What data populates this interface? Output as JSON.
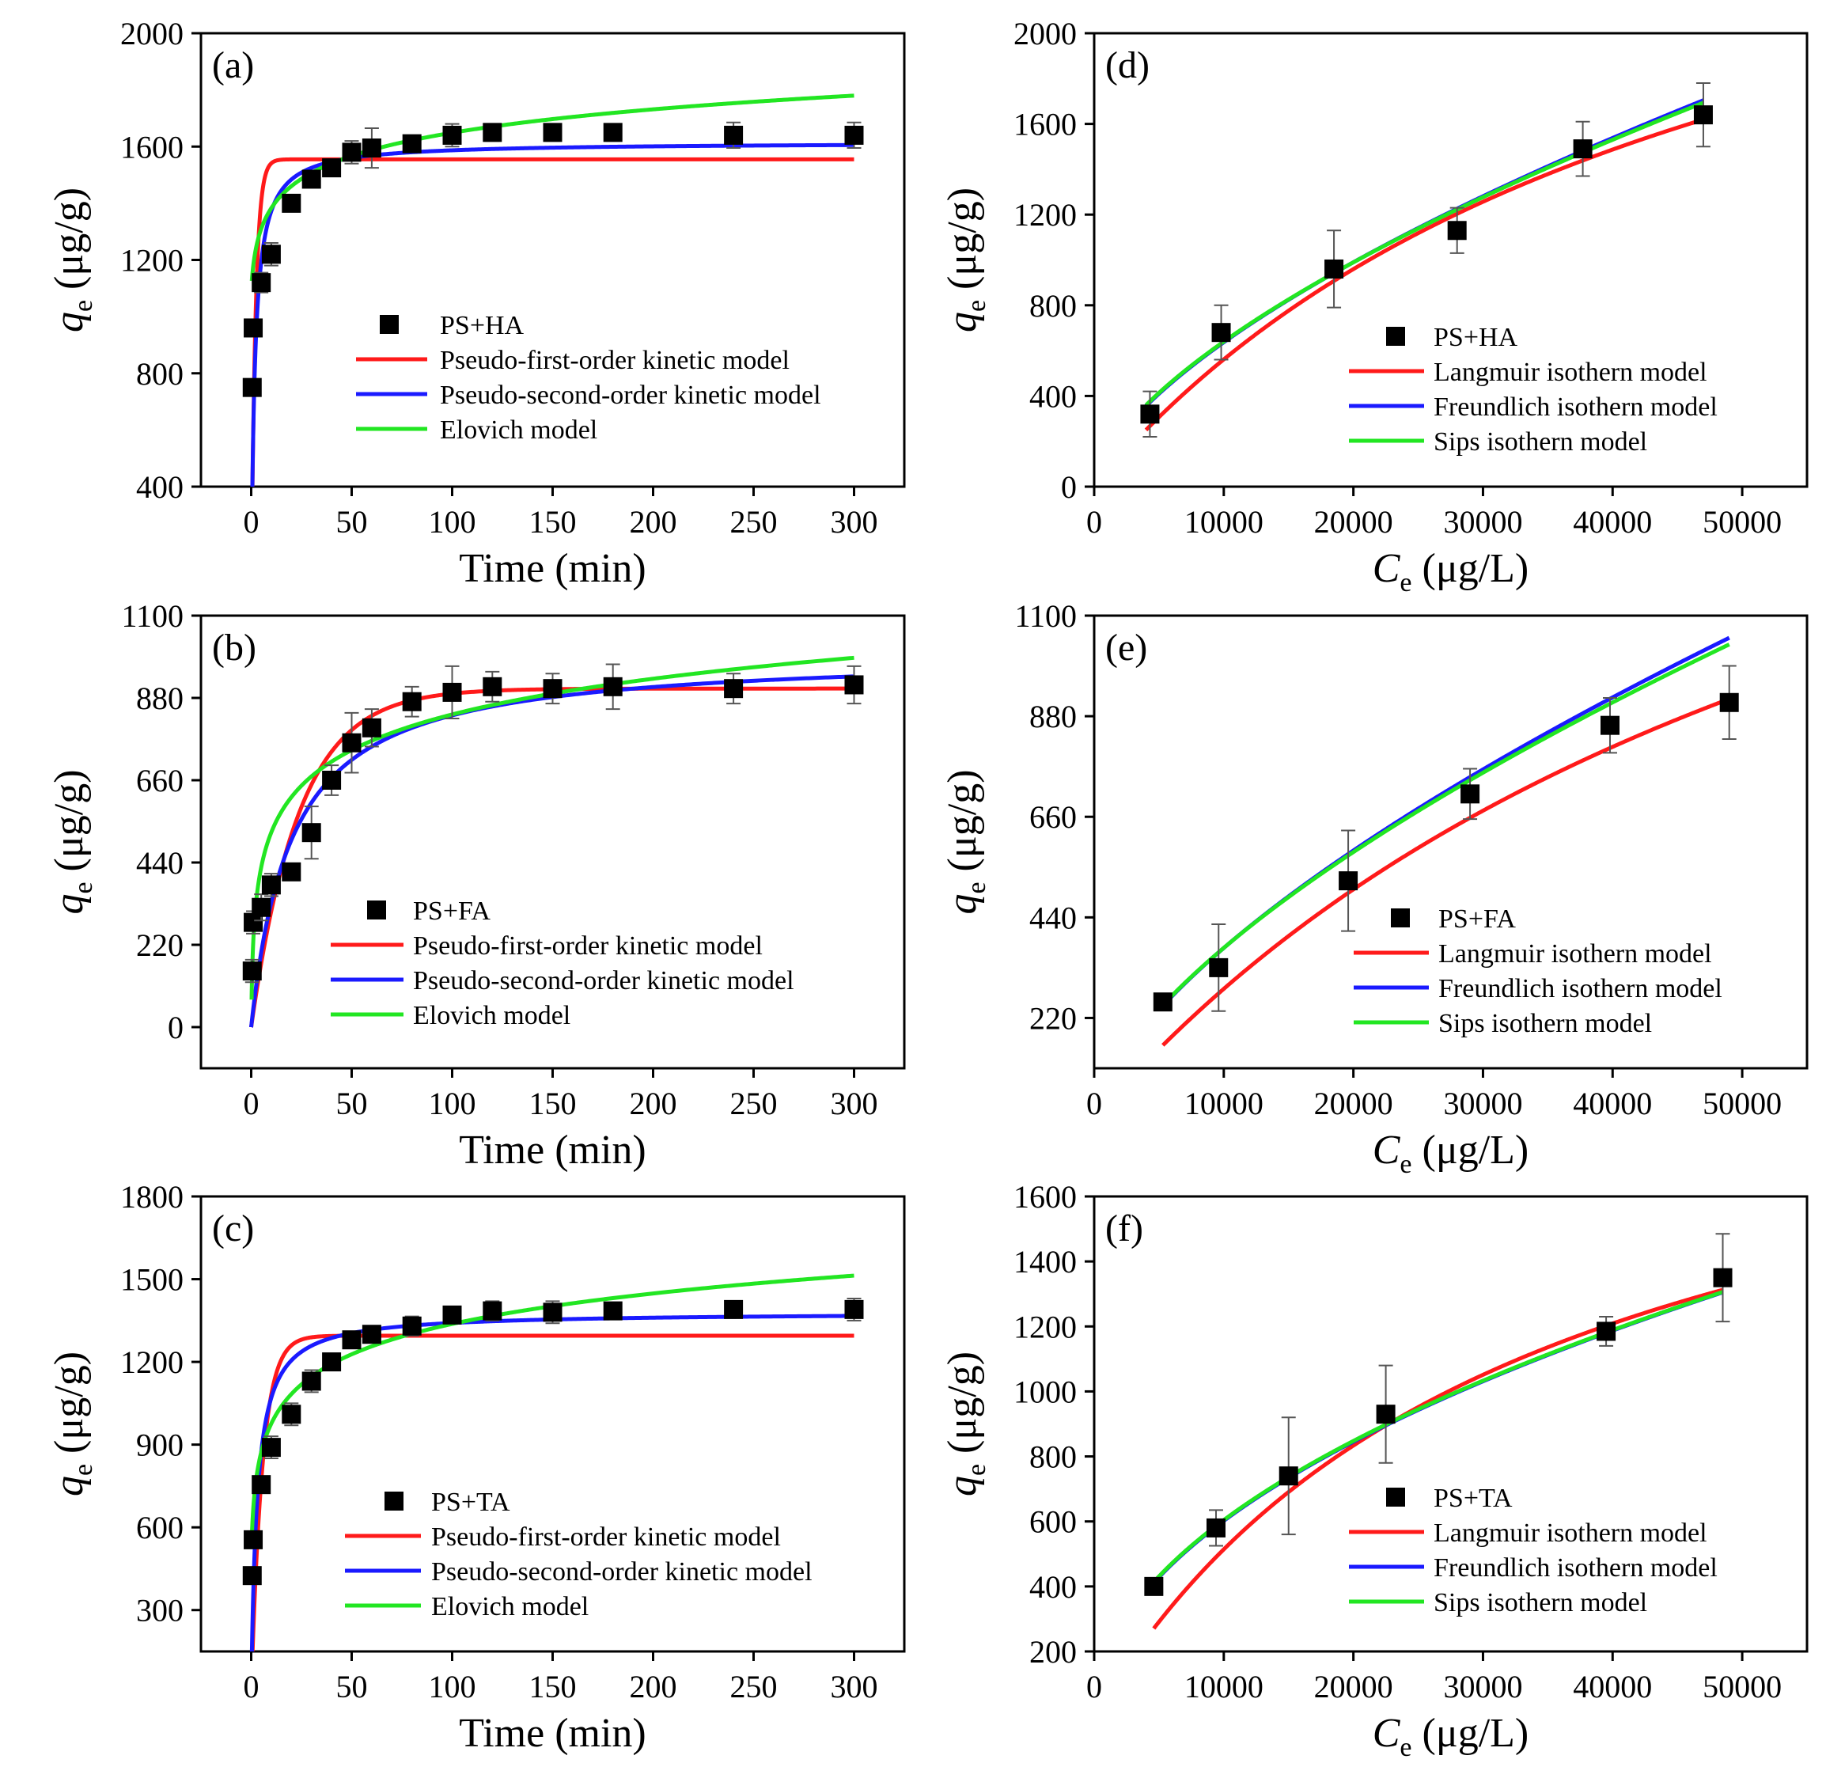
{
  "figure": {
    "colors": {
      "data": "#000000",
      "pfo": "#ff1a1a",
      "pso": "#1a1aff",
      "elovich": "#22e622",
      "langmuir": "#ff1a1a",
      "freundlich": "#1a1aff",
      "sips": "#22e622"
    }
  },
  "chart_data": [
    {
      "type": "scatter",
      "panel": "(a)",
      "xlabel_main": "Time (min)",
      "ylabel_main": "q",
      "ylabel_sub": "e",
      "ylabel_unit": " (μg/g)",
      "xlim": [
        -25,
        325
      ],
      "ylim": [
        400,
        2000
      ],
      "xticks": [
        0,
        50,
        100,
        150,
        200,
        250,
        300
      ],
      "xtick_labels": [
        "0",
        "50",
        "100",
        "150",
        "200",
        "250",
        "300"
      ],
      "yticks": [
        400,
        800,
        1200,
        1600,
        2000
      ],
      "ytick_labels": [
        "400",
        "800",
        "1200",
        "1600",
        "2000"
      ],
      "legend": [
        "PS+HA",
        "Pseudo-first-order kinetic model",
        "Pseudo-second-order kinetic model",
        "Elovich model"
      ],
      "points": [
        {
          "x": 0.5,
          "y": 750,
          "err": 25
        },
        {
          "x": 1,
          "y": 960,
          "err": 30
        },
        {
          "x": 5,
          "y": 1120,
          "err": 35
        },
        {
          "x": 10,
          "y": 1220,
          "err": 40
        },
        {
          "x": 20,
          "y": 1400,
          "err": 25
        },
        {
          "x": 30,
          "y": 1485,
          "err": 30
        },
        {
          "x": 40,
          "y": 1525,
          "err": 30
        },
        {
          "x": 50,
          "y": 1580,
          "err": 40
        },
        {
          "x": 60,
          "y": 1595,
          "err": 70
        },
        {
          "x": 80,
          "y": 1610,
          "err": 20
        },
        {
          "x": 100,
          "y": 1640,
          "err": 40
        },
        {
          "x": 120,
          "y": 1650,
          "err": 30
        },
        {
          "x": 150,
          "y": 1650,
          "err": 30
        },
        {
          "x": 180,
          "y": 1650,
          "err": 30
        },
        {
          "x": 240,
          "y": 1640,
          "err": 45
        },
        {
          "x": 300,
          "y": 1640,
          "err": 45
        }
      ],
      "series": [
        {
          "name": "Pseudo-first-order kinetic model",
          "model": "pfo",
          "color": "pfo",
          "params": {
            "qe": 1555,
            "k": 0.47
          },
          "x0": 0,
          "x1": 300
        },
        {
          "name": "Pseudo-second-order kinetic model",
          "model": "pso",
          "color": "pso",
          "params": {
            "qe": 1615,
            "k": 0.00035
          },
          "x0": 0,
          "x1": 300
        },
        {
          "name": "Elovich model",
          "model": "elovich",
          "color": "elovich",
          "params": {
            "a": 1095,
            "b": 120,
            "c": 1
          },
          "x0": 0.3,
          "x1": 300
        }
      ]
    },
    {
      "type": "scatter",
      "panel": "(b)",
      "xlabel_main": "Time (min)",
      "ylabel_main": "q",
      "ylabel_sub": "e",
      "ylabel_unit": " (μg/g)",
      "xlim": [
        -25,
        325
      ],
      "ylim": [
        -110,
        1100
      ],
      "xticks": [
        0,
        50,
        100,
        150,
        200,
        250,
        300
      ],
      "xtick_labels": [
        "0",
        "50",
        "100",
        "150",
        "200",
        "250",
        "300"
      ],
      "yticks": [
        0,
        220,
        440,
        660,
        880,
        1100
      ],
      "ytick_labels": [
        "0",
        "220",
        "440",
        "660",
        "880",
        "1100"
      ],
      "legend": [
        "PS+FA",
        "Pseudo-first-order kinetic model",
        "Pseudo-second-order kinetic model",
        "Elovich model"
      ],
      "points": [
        {
          "x": 0.5,
          "y": 150,
          "err": 30
        },
        {
          "x": 1,
          "y": 280,
          "err": 30
        },
        {
          "x": 5,
          "y": 320,
          "err": 35
        },
        {
          "x": 10,
          "y": 380,
          "err": 30
        },
        {
          "x": 20,
          "y": 415,
          "err": 20
        },
        {
          "x": 30,
          "y": 520,
          "err": 70
        },
        {
          "x": 40,
          "y": 660,
          "err": 40
        },
        {
          "x": 50,
          "y": 760,
          "err": 80
        },
        {
          "x": 60,
          "y": 800,
          "err": 50
        },
        {
          "x": 80,
          "y": 870,
          "err": 40
        },
        {
          "x": 100,
          "y": 895,
          "err": 70
        },
        {
          "x": 120,
          "y": 910,
          "err": 40
        },
        {
          "x": 150,
          "y": 905,
          "err": 40
        },
        {
          "x": 180,
          "y": 910,
          "err": 60
        },
        {
          "x": 240,
          "y": 905,
          "err": 40
        },
        {
          "x": 300,
          "y": 915,
          "err": 50
        }
      ],
      "series": [
        {
          "name": "Pseudo-first-order kinetic model",
          "model": "pfo",
          "color": "pfo",
          "params": {
            "qe": 905,
            "k": 0.042
          },
          "x0": 0,
          "x1": 300
        },
        {
          "name": "Pseudo-second-order kinetic model",
          "model": "pso",
          "color": "pso",
          "params": {
            "qe": 1000,
            "k": 5e-05
          },
          "x0": 0,
          "x1": 300
        },
        {
          "name": "Elovich model",
          "model": "elovich",
          "color": "elovich",
          "params": {
            "a": 200,
            "b": 138,
            "c": 0.2
          },
          "x0": 0.2,
          "x1": 300
        }
      ]
    },
    {
      "type": "scatter",
      "panel": "(c)",
      "xlabel_main": "Time (min)",
      "ylabel_main": "q",
      "ylabel_sub": "e",
      "ylabel_unit": " (μg/g)",
      "xlim": [
        -25,
        325
      ],
      "ylim": [
        150,
        1800
      ],
      "xticks": [
        0,
        50,
        100,
        150,
        200,
        250,
        300
      ],
      "xtick_labels": [
        "0",
        "50",
        "100",
        "150",
        "200",
        "250",
        "300"
      ],
      "yticks": [
        300,
        600,
        900,
        1200,
        1500,
        1800
      ],
      "ytick_labels": [
        "300",
        "600",
        "900",
        "1200",
        "1500",
        "1800"
      ],
      "legend": [
        "PS+TA",
        "Pseudo-first-order kinetic model",
        "Pseudo-second-order kinetic model",
        "Elovich model"
      ],
      "points": [
        {
          "x": 0.5,
          "y": 425,
          "err": 30
        },
        {
          "x": 1,
          "y": 555,
          "err": 30
        },
        {
          "x": 5,
          "y": 755,
          "err": 30
        },
        {
          "x": 10,
          "y": 890,
          "err": 40
        },
        {
          "x": 20,
          "y": 1010,
          "err": 40
        },
        {
          "x": 30,
          "y": 1130,
          "err": 40
        },
        {
          "x": 40,
          "y": 1200,
          "err": 30
        },
        {
          "x": 50,
          "y": 1280,
          "err": 30
        },
        {
          "x": 60,
          "y": 1300,
          "err": 25
        },
        {
          "x": 80,
          "y": 1330,
          "err": 35
        },
        {
          "x": 100,
          "y": 1370,
          "err": 30
        },
        {
          "x": 120,
          "y": 1385,
          "err": 35
        },
        {
          "x": 150,
          "y": 1380,
          "err": 40
        },
        {
          "x": 180,
          "y": 1385,
          "err": 30
        },
        {
          "x": 240,
          "y": 1390,
          "err": 30
        },
        {
          "x": 300,
          "y": 1390,
          "err": 40
        }
      ],
      "series": [
        {
          "name": "Pseudo-first-order kinetic model",
          "model": "pfo",
          "color": "pfo",
          "params": {
            "qe": 1295,
            "k": 0.18
          },
          "x0": 0,
          "x1": 300
        },
        {
          "name": "Pseudo-second-order kinetic model",
          "model": "pso",
          "color": "pso",
          "params": {
            "qe": 1380,
            "k": 0.00025
          },
          "x0": 0,
          "x1": 300
        },
        {
          "name": "Elovich model",
          "model": "elovich",
          "color": "elovich",
          "params": {
            "a": 600,
            "b": 160,
            "c": 0.5
          },
          "x0": 0.2,
          "x1": 300
        }
      ]
    },
    {
      "type": "scatter",
      "panel": "(d)",
      "xlabel_main": "C",
      "xlabel_sub": "e",
      "xlabel_unit": " (μg/L)",
      "ylabel_main": "q",
      "ylabel_sub": "e",
      "ylabel_unit": " (μg/g)",
      "xlim": [
        0,
        55000
      ],
      "ylim": [
        0,
        2000
      ],
      "xticks": [
        0,
        10000,
        20000,
        30000,
        40000,
        50000
      ],
      "xtick_labels": [
        "0",
        "10000",
        "20000",
        "30000",
        "40000",
        "50000"
      ],
      "yticks": [
        0,
        400,
        800,
        1200,
        1600,
        2000
      ],
      "ytick_labels": [
        "0",
        "400",
        "800",
        "1200",
        "1600",
        "2000"
      ],
      "legend": [
        "PS+HA",
        "Langmuir isothern model",
        "Freundlich isothern model",
        "Sips isothern model"
      ],
      "points": [
        {
          "x": 4300,
          "y": 320,
          "err": 100
        },
        {
          "x": 9800,
          "y": 680,
          "err": 120
        },
        {
          "x": 18500,
          "y": 960,
          "err": 170
        },
        {
          "x": 28000,
          "y": 1130,
          "err": 100
        },
        {
          "x": 37700,
          "y": 1490,
          "err": 120
        },
        {
          "x": 47000,
          "y": 1640,
          "err": 140
        }
      ],
      "series": [
        {
          "name": "Langmuir isothern model",
          "model": "langmuir",
          "color": "langmuir",
          "params": {
            "qm": 3300,
            "K": 2.05e-05
          },
          "x0": 4000,
          "x1": 47000
        },
        {
          "name": "Freundlich isothern model",
          "model": "freundlich",
          "color": "freundlich",
          "params": {
            "K": 1.82,
            "n": 0.636
          },
          "x0": 4000,
          "x1": 47000
        },
        {
          "name": "Sips isothern model",
          "model": "freundlich",
          "color": "sips",
          "params": {
            "K": 1.95,
            "n": 0.629
          },
          "x0": 4000,
          "x1": 47000
        }
      ]
    },
    {
      "type": "scatter",
      "panel": "(e)",
      "xlabel_main": "C",
      "xlabel_sub": "e",
      "xlabel_unit": " (μg/L)",
      "ylabel_main": "q",
      "ylabel_sub": "e",
      "ylabel_unit": " (μg/g)",
      "xlim": [
        0,
        55000
      ],
      "ylim": [
        110,
        1100
      ],
      "xticks": [
        0,
        10000,
        20000,
        30000,
        40000,
        50000
      ],
      "xtick_labels": [
        "0",
        "10000",
        "20000",
        "30000",
        "40000",
        "50000"
      ],
      "yticks": [
        220,
        440,
        660,
        880,
        1100
      ],
      "ytick_labels": [
        "220",
        "440",
        "660",
        "880",
        "1100"
      ],
      "legend": [
        "PS+FA",
        "Langmuir isothern model",
        "Freundlich isothern model",
        "Sips isothern model"
      ],
      "points": [
        {
          "x": 5300,
          "y": 255,
          "err": 15
        },
        {
          "x": 9600,
          "y": 330,
          "err": 95
        },
        {
          "x": 19600,
          "y": 520,
          "err": 110
        },
        {
          "x": 29000,
          "y": 710,
          "err": 55
        },
        {
          "x": 39800,
          "y": 860,
          "err": 60
        },
        {
          "x": 49000,
          "y": 910,
          "err": 80
        }
      ],
      "series": [
        {
          "name": "Langmuir isothern model",
          "model": "langmuir",
          "color": "langmuir",
          "params": {
            "qm": 2150,
            "K": 1.52e-05
          },
          "x0": 5300,
          "x1": 49000
        },
        {
          "name": "Freundlich isothern model",
          "model": "freundlich",
          "color": "freundlich",
          "params": {
            "K": 0.92,
            "n": 0.652
          },
          "x0": 5300,
          "x1": 49000
        },
        {
          "name": "Sips isothern model",
          "model": "freundlich",
          "color": "sips",
          "params": {
            "K": 1.0,
            "n": 0.643
          },
          "x0": 5300,
          "x1": 49000
        }
      ]
    },
    {
      "type": "scatter",
      "panel": "(f)",
      "xlabel_main": "C",
      "xlabel_sub": "e",
      "xlabel_unit": " (μg/L)",
      "ylabel_main": "q",
      "ylabel_sub": "e",
      "ylabel_unit": " (μg/g)",
      "xlim": [
        0,
        55000
      ],
      "ylim": [
        200,
        1600
      ],
      "xticks": [
        0,
        10000,
        20000,
        30000,
        40000,
        50000
      ],
      "xtick_labels": [
        "0",
        "10000",
        "20000",
        "30000",
        "40000",
        "50000"
      ],
      "yticks": [
        200,
        400,
        600,
        800,
        1000,
        1200,
        1400,
        1600
      ],
      "ytick_labels": [
        "200",
        "400",
        "600",
        "800",
        "1000",
        "1200",
        "1400",
        "1600"
      ],
      "legend": [
        "PS+TA",
        "Langmuir isothern model",
        "Freundlich isothern model",
        "Sips isothern model"
      ],
      "points": [
        {
          "x": 4600,
          "y": 400,
          "err": 10
        },
        {
          "x": 9400,
          "y": 580,
          "err": 55
        },
        {
          "x": 15000,
          "y": 740,
          "err": 180
        },
        {
          "x": 22500,
          "y": 930,
          "err": 150
        },
        {
          "x": 39500,
          "y": 1185,
          "err": 45
        },
        {
          "x": 48500,
          "y": 1350,
          "err": 135
        }
      ],
      "series": [
        {
          "name": "Langmuir isothern model",
          "model": "langmuir",
          "color": "langmuir",
          "params": {
            "qm": 2200,
            "K": 3.05e-05
          },
          "x0": 4600,
          "x1": 48500
        },
        {
          "name": "Freundlich isothern model",
          "model": "freundlich",
          "color": "freundlich",
          "params": {
            "K": 6.6,
            "n": 0.49
          },
          "x0": 4600,
          "x1": 48500
        },
        {
          "name": "Sips isothern model",
          "model": "freundlich",
          "color": "sips",
          "params": {
            "K": 6.75,
            "n": 0.488
          },
          "x0": 4600,
          "x1": 48500
        }
      ]
    }
  ]
}
